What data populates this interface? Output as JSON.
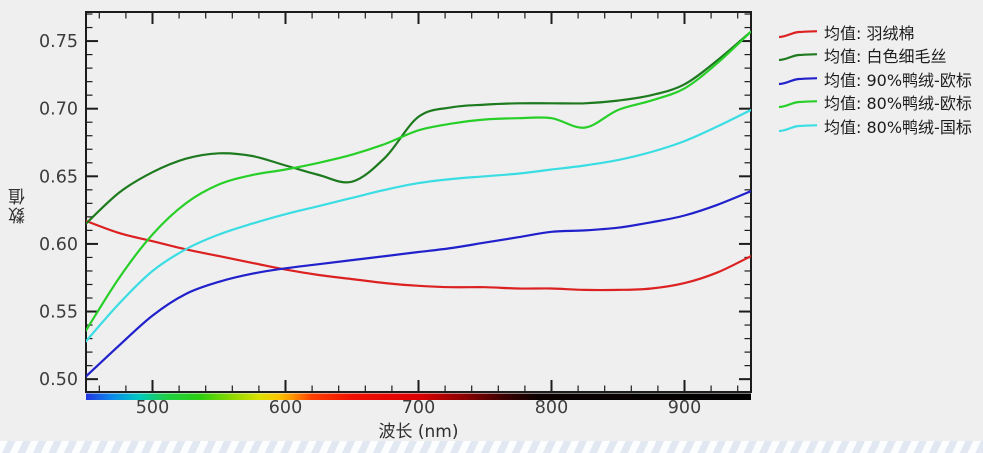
{
  "page": {
    "background": "#efeff0",
    "watermark_strip_color": "#edf1f7"
  },
  "chart_data": {
    "type": "line",
    "title": "",
    "xlabel": "波长 (nm)",
    "ylabel": "数值",
    "grid": false,
    "legend_position": "right-outside",
    "xlim": [
      450,
      950
    ],
    "ylim": [
      0.4905,
      0.7715
    ],
    "x_major_ticks": [
      500,
      600,
      700,
      800,
      900
    ],
    "x_minor_step": 20,
    "y_major_ticks": [
      0.5,
      0.55,
      0.6,
      0.65,
      0.7,
      0.75
    ],
    "y_minor_step": 0.01,
    "axis_color": "#1c1c1c",
    "tick_label_color": "#3d3d3d",
    "x": [
      450,
      475,
      500,
      525,
      550,
      575,
      600,
      625,
      650,
      675,
      700,
      725,
      750,
      775,
      800,
      825,
      850,
      875,
      900,
      925,
      950
    ],
    "series": [
      {
        "name": "均值: 羽绒棉",
        "color": "#dc2121",
        "values": [
          0.617,
          0.608,
          0.602,
          0.596,
          0.591,
          0.586,
          0.581,
          0.577,
          0.574,
          0.571,
          0.569,
          0.568,
          0.568,
          0.567,
          0.567,
          0.566,
          0.566,
          0.567,
          0.571,
          0.579,
          0.591
        ]
      },
      {
        "name": "均值: 白色细毛丝",
        "color": "#1e7a1e",
        "values": [
          0.615,
          0.638,
          0.653,
          0.663,
          0.667,
          0.665,
          0.658,
          0.651,
          0.646,
          0.664,
          0.694,
          0.701,
          0.703,
          0.704,
          0.704,
          0.704,
          0.706,
          0.71,
          0.718,
          0.736,
          0.757
        ]
      },
      {
        "name": "均值: 90%鸭绒-欧标",
        "color": "#2121cc",
        "values": [
          0.502,
          0.525,
          0.547,
          0.563,
          0.572,
          0.578,
          0.582,
          0.585,
          0.588,
          0.591,
          0.594,
          0.597,
          0.601,
          0.605,
          0.609,
          0.61,
          0.612,
          0.616,
          0.621,
          0.629,
          0.639
        ]
      },
      {
        "name": "均值: 80%鸭绒-欧标",
        "color": "#28cf28",
        "values": [
          0.536,
          0.575,
          0.607,
          0.63,
          0.644,
          0.651,
          0.655,
          0.66,
          0.666,
          0.674,
          0.684,
          0.689,
          0.692,
          0.693,
          0.693,
          0.686,
          0.699,
          0.706,
          0.715,
          0.734,
          0.757
        ]
      },
      {
        "name": "均值: 80%鸭绒-国标",
        "color": "#3adde2",
        "values": [
          0.528,
          0.556,
          0.58,
          0.596,
          0.607,
          0.615,
          0.622,
          0.628,
          0.634,
          0.64,
          0.645,
          0.648,
          0.65,
          0.652,
          0.655,
          0.658,
          0.662,
          0.668,
          0.676,
          0.687,
          0.699
        ]
      }
    ],
    "spectrum_bar": {
      "stops": [
        [
          0.0,
          "#2436e3"
        ],
        [
          0.04,
          "#0b8ce8"
        ],
        [
          0.08,
          "#00c9c0"
        ],
        [
          0.12,
          "#1fcf46"
        ],
        [
          0.17,
          "#2ccf12"
        ],
        [
          0.22,
          "#8ed800"
        ],
        [
          0.26,
          "#dce000"
        ],
        [
          0.29,
          "#fcc400"
        ],
        [
          0.31,
          "#ff9500"
        ],
        [
          0.34,
          "#ff4000"
        ],
        [
          0.4,
          "#f01000"
        ],
        [
          0.5,
          "#dc0000"
        ],
        [
          0.57,
          "#8a0000"
        ],
        [
          0.63,
          "#3a0000"
        ],
        [
          0.68,
          "#0a0000"
        ],
        [
          1.0,
          "#000000"
        ]
      ]
    }
  }
}
